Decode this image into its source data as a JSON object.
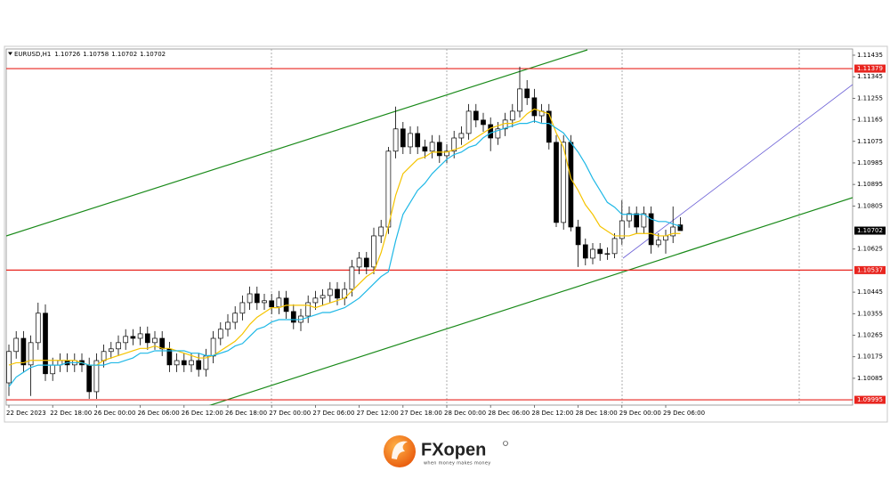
{
  "chart_data": {
    "type": "candlestick",
    "symbol": "EURUSD,H1",
    "categories": [
      "22 Dec 2023",
      null,
      null,
      null,
      null,
      null,
      "22 Dec 18:00",
      null,
      null,
      null,
      null,
      null,
      "26 Dec 00:00",
      null,
      null,
      null,
      null,
      null,
      "26 Dec 06:00",
      null,
      null,
      null,
      null,
      null,
      "26 Dec 12:00",
      null,
      null,
      null,
      null,
      null,
      "26 Dec 18:00",
      null,
      null,
      null,
      null,
      null,
      "27 Dec 00:00",
      null,
      null,
      null,
      null,
      null,
      "27 Dec 06:00",
      null,
      null,
      null,
      null,
      null,
      "27 Dec 12:00",
      null,
      null,
      null,
      null,
      null,
      "27 Dec 18:00",
      null,
      null,
      null,
      null,
      null,
      "28 Dec 00:00",
      null,
      null,
      null,
      null,
      null,
      "28 Dec 06:00",
      null,
      null,
      null,
      null,
      null,
      "28 Dec 12:00",
      null,
      null,
      null,
      null,
      null,
      "28 Dec 18:00",
      null,
      null,
      null,
      null,
      null,
      "29 Dec 00:00",
      null,
      null,
      null,
      null,
      null,
      "29 Dec 06:00",
      null,
      null
    ],
    "open": [
      1.10066,
      1.10197,
      1.10252,
      1.10141,
      1.10234,
      1.10357,
      1.10104,
      1.10141,
      1.10159,
      1.10141,
      1.10159,
      1.10141,
      1.10029,
      1.10159,
      1.10197,
      1.10208,
      1.10234,
      1.1026,
      1.10252,
      1.10271,
      1.10234,
      1.10252,
      1.10208,
      1.10141,
      1.10159,
      1.10141,
      1.10159,
      1.10122,
      1.10178,
      1.10252,
      1.1029,
      1.10319,
      1.10357,
      1.10401,
      1.10438,
      1.10401,
      1.10409,
      1.10383,
      1.1042,
      1.10364,
      1.10319,
      1.10345,
      1.10401,
      1.1042,
      1.10431,
      1.10457,
      1.1042,
      1.10457,
      1.1055,
      1.10587,
      1.1055,
      1.1068,
      1.10717,
      1.11034,
      1.11127,
      1.11052,
      1.11108,
      1.11052,
      1.11034,
      1.11071,
      1.11015,
      1.11034,
      1.11089,
      1.11108,
      1.11201,
      1.11164,
      1.11145,
      1.11089,
      1.11127,
      1.11164,
      1.11201,
      1.11294,
      1.11257,
      1.11182,
      1.11201,
      1.11071,
      1.10736,
      1.11071,
      1.10717,
      1.10643,
      1.10587,
      1.10624,
      1.10606,
      1.10606,
      1.10669,
      1.10743,
      1.10773,
      1.10717,
      1.10773,
      1.10643,
      1.10662,
      1.1068,
      1.10726
    ],
    "high": [
      1.10226,
      1.10282,
      1.10282,
      1.10264,
      1.10401,
      1.10394,
      1.10171,
      1.10189,
      1.10189,
      1.10189,
      1.10189,
      1.10171,
      1.10189,
      1.10226,
      1.10237,
      1.10264,
      1.1029,
      1.1029,
      1.10301,
      1.10301,
      1.10282,
      1.10282,
      1.10237,
      1.10189,
      1.10189,
      1.10189,
      1.10189,
      1.10208,
      1.10282,
      1.10319,
      1.10353,
      1.10386,
      1.10431,
      1.10468,
      1.10468,
      1.10438,
      1.10438,
      1.1045,
      1.1045,
      1.10394,
      1.10375,
      1.10431,
      1.1045,
      1.10457,
      1.10487,
      1.10487,
      1.10487,
      1.1058,
      1.10613,
      1.10613,
      1.10714,
      1.10747,
      1.11052,
      1.1122,
      1.11156,
      1.11138,
      1.11138,
      1.11082,
      1.11101,
      1.11101,
      1.11063,
      1.11119,
      1.11138,
      1.11231,
      1.11231,
      1.11194,
      1.11175,
      1.11156,
      1.11194,
      1.11231,
      1.11387,
      1.11331,
      1.11294,
      1.11231,
      1.11231,
      1.11101,
      1.11101,
      1.11101,
      1.10747,
      1.10669,
      1.1065,
      1.1065,
      1.10632,
      1.10691,
      1.10829,
      1.10803,
      1.10803,
      1.10803,
      1.10803,
      1.10691,
      1.10706,
      1.10803,
      1.10758
    ],
    "low": [
      1.10011,
      1.10167,
      1.10111,
      1.10011,
      1.10204,
      1.10074,
      1.10074,
      1.10111,
      1.10111,
      1.10111,
      1.10111,
      1.09999,
      1.09999,
      1.1013,
      1.10167,
      1.10178,
      1.10204,
      1.10223,
      1.10223,
      1.10204,
      1.10204,
      1.10178,
      1.10111,
      1.10111,
      1.10111,
      1.10111,
      1.10092,
      1.10092,
      1.10148,
      1.10223,
      1.1026,
      1.1029,
      1.10327,
      1.10371,
      1.10371,
      1.10371,
      1.10353,
      1.10353,
      1.10334,
      1.1029,
      1.10282,
      1.10316,
      1.10371,
      1.1039,
      1.10401,
      1.1039,
      1.1039,
      1.10427,
      1.1052,
      1.1052,
      1.1052,
      1.1065,
      1.10688,
      1.11004,
      1.11022,
      1.11022,
      1.11022,
      1.11004,
      1.11004,
      1.10985,
      1.10985,
      1.11004,
      1.1106,
      1.11082,
      1.11134,
      1.11115,
      1.11034,
      1.1106,
      1.11097,
      1.11134,
      1.11175,
      1.11227,
      1.11153,
      1.11153,
      1.11041,
      1.10717,
      1.10706,
      1.10699,
      1.1055,
      1.10557,
      1.10561,
      1.10576,
      1.1058,
      1.10587,
      1.10643,
      1.10714,
      1.10688,
      1.10688,
      1.10606,
      1.10632,
      1.10606,
      1.1065,
      1.10702
    ],
    "close": [
      1.10197,
      1.10252,
      1.10141,
      1.10234,
      1.10357,
      1.10104,
      1.10141,
      1.10159,
      1.10141,
      1.10159,
      1.10141,
      1.10029,
      1.10159,
      1.10197,
      1.10208,
      1.10234,
      1.1026,
      1.10252,
      1.10271,
      1.10234,
      1.10252,
      1.10208,
      1.10141,
      1.10159,
      1.10141,
      1.10159,
      1.10122,
      1.10178,
      1.10252,
      1.1029,
      1.10319,
      1.10357,
      1.10401,
      1.10438,
      1.10401,
      1.10409,
      1.10383,
      1.1042,
      1.10364,
      1.10319,
      1.10345,
      1.10401,
      1.1042,
      1.10431,
      1.10457,
      1.1042,
      1.10457,
      1.1055,
      1.10587,
      1.1055,
      1.1068,
      1.10717,
      1.11034,
      1.11127,
      1.11052,
      1.11108,
      1.11052,
      1.11034,
      1.11071,
      1.11015,
      1.11034,
      1.11089,
      1.11108,
      1.11201,
      1.11164,
      1.11145,
      1.11089,
      1.11127,
      1.11164,
      1.11201,
      1.11294,
      1.11257,
      1.11182,
      1.11201,
      1.11071,
      1.10736,
      1.11071,
      1.10717,
      1.10643,
      1.10587,
      1.10624,
      1.10606,
      1.10606,
      1.10669,
      1.10743,
      1.10773,
      1.10717,
      1.10773,
      1.10643,
      1.10662,
      1.1068,
      1.10717,
      1.10702
    ],
    "up_color": "#ffffff",
    "down_color": "#000000",
    "series": [
      {
        "color": "#f5c400",
        "values": [
          1.1014,
          1.1015,
          1.1015,
          1.1016,
          1.1016,
          1.1016,
          1.1016,
          1.1016,
          1.1016,
          1.1016,
          1.1015,
          1.1014,
          1.1014,
          1.1016,
          1.1017,
          1.1018,
          1.1019,
          1.102,
          1.1021,
          1.1021,
          1.1022,
          1.1021,
          1.1021,
          1.102,
          1.1019,
          1.1018,
          1.1017,
          1.1017,
          1.1018,
          1.102,
          1.1022,
          1.1024,
          1.1027,
          1.1031,
          1.1034,
          1.1036,
          1.1038,
          1.1038,
          1.1039,
          1.1039,
          1.1039,
          1.1039,
          1.1038,
          1.1039,
          1.104,
          1.1041,
          1.1042,
          1.1045,
          1.1048,
          1.1051,
          1.1053,
          1.1061,
          1.1072,
          1.1085,
          1.1094,
          1.1097,
          1.11,
          1.1101,
          1.1103,
          1.1103,
          1.1103,
          1.1104,
          1.1105,
          1.1107,
          1.1109,
          1.1111,
          1.1113,
          1.1114,
          1.1115,
          1.1115,
          1.1116,
          1.1119,
          1.1121,
          1.112,
          1.1119,
          1.1111,
          1.1105,
          1.1092,
          1.1087,
          1.1081,
          1.1077,
          1.1072,
          1.107,
          1.1068,
          1.1068,
          1.1068,
          1.1069,
          1.1069,
          1.1069,
          1.1068,
          1.1068,
          1.1069,
          1.1069
        ]
      },
      {
        "color": "#1fb8e6",
        "values": [
          1.1005,
          1.1009,
          1.1011,
          1.1013,
          1.1014,
          1.1014,
          1.1014,
          1.1014,
          1.1015,
          1.1015,
          1.1015,
          1.1014,
          1.1014,
          1.1014,
          1.1015,
          1.1015,
          1.1016,
          1.1017,
          1.1019,
          1.1019,
          1.102,
          1.102,
          1.102,
          1.102,
          1.102,
          1.1019,
          1.1019,
          1.1018,
          1.1018,
          1.1019,
          1.102,
          1.1022,
          1.1023,
          1.1026,
          1.1029,
          1.103,
          1.1032,
          1.1033,
          1.1033,
          1.1033,
          1.1033,
          1.1034,
          1.1035,
          1.1036,
          1.1036,
          1.1037,
          1.1038,
          1.104,
          1.1042,
          1.1045,
          1.1048,
          1.1051,
          1.1053,
          1.1066,
          1.1077,
          1.1082,
          1.1087,
          1.109,
          1.1094,
          1.1097,
          1.11,
          1.1102,
          1.1103,
          1.1105,
          1.1106,
          1.1109,
          1.1111,
          1.1112,
          1.1113,
          1.1114,
          1.1115,
          1.1115,
          1.1116,
          1.1115,
          1.1115,
          1.1113,
          1.1111,
          1.1107,
          1.1103,
          1.1098,
          1.1092,
          1.1087,
          1.1082,
          1.108,
          1.1077,
          1.1077,
          1.1077,
          1.1077,
          1.1075,
          1.1074,
          1.1074,
          1.1073,
          1.1072
        ]
      }
    ],
    "levels": [
      {
        "value": 1.11379,
        "color": "#e8251f"
      },
      {
        "value": 1.10537,
        "color": "#e8251f"
      },
      {
        "value": 1.09995,
        "color": "#e8251f"
      }
    ],
    "ylim": [
      1.09973,
      1.11461
    ],
    "yticks": [
      1.11435,
      1.11345,
      1.11255,
      1.11165,
      1.11075,
      1.10985,
      1.10895,
      1.10805,
      1.10625,
      1.10445,
      1.10355,
      1.10265,
      1.10175,
      1.10085
    ]
  },
  "footer": {
    "brand": "FXopen",
    "tagline": "when money makes money"
  }
}
